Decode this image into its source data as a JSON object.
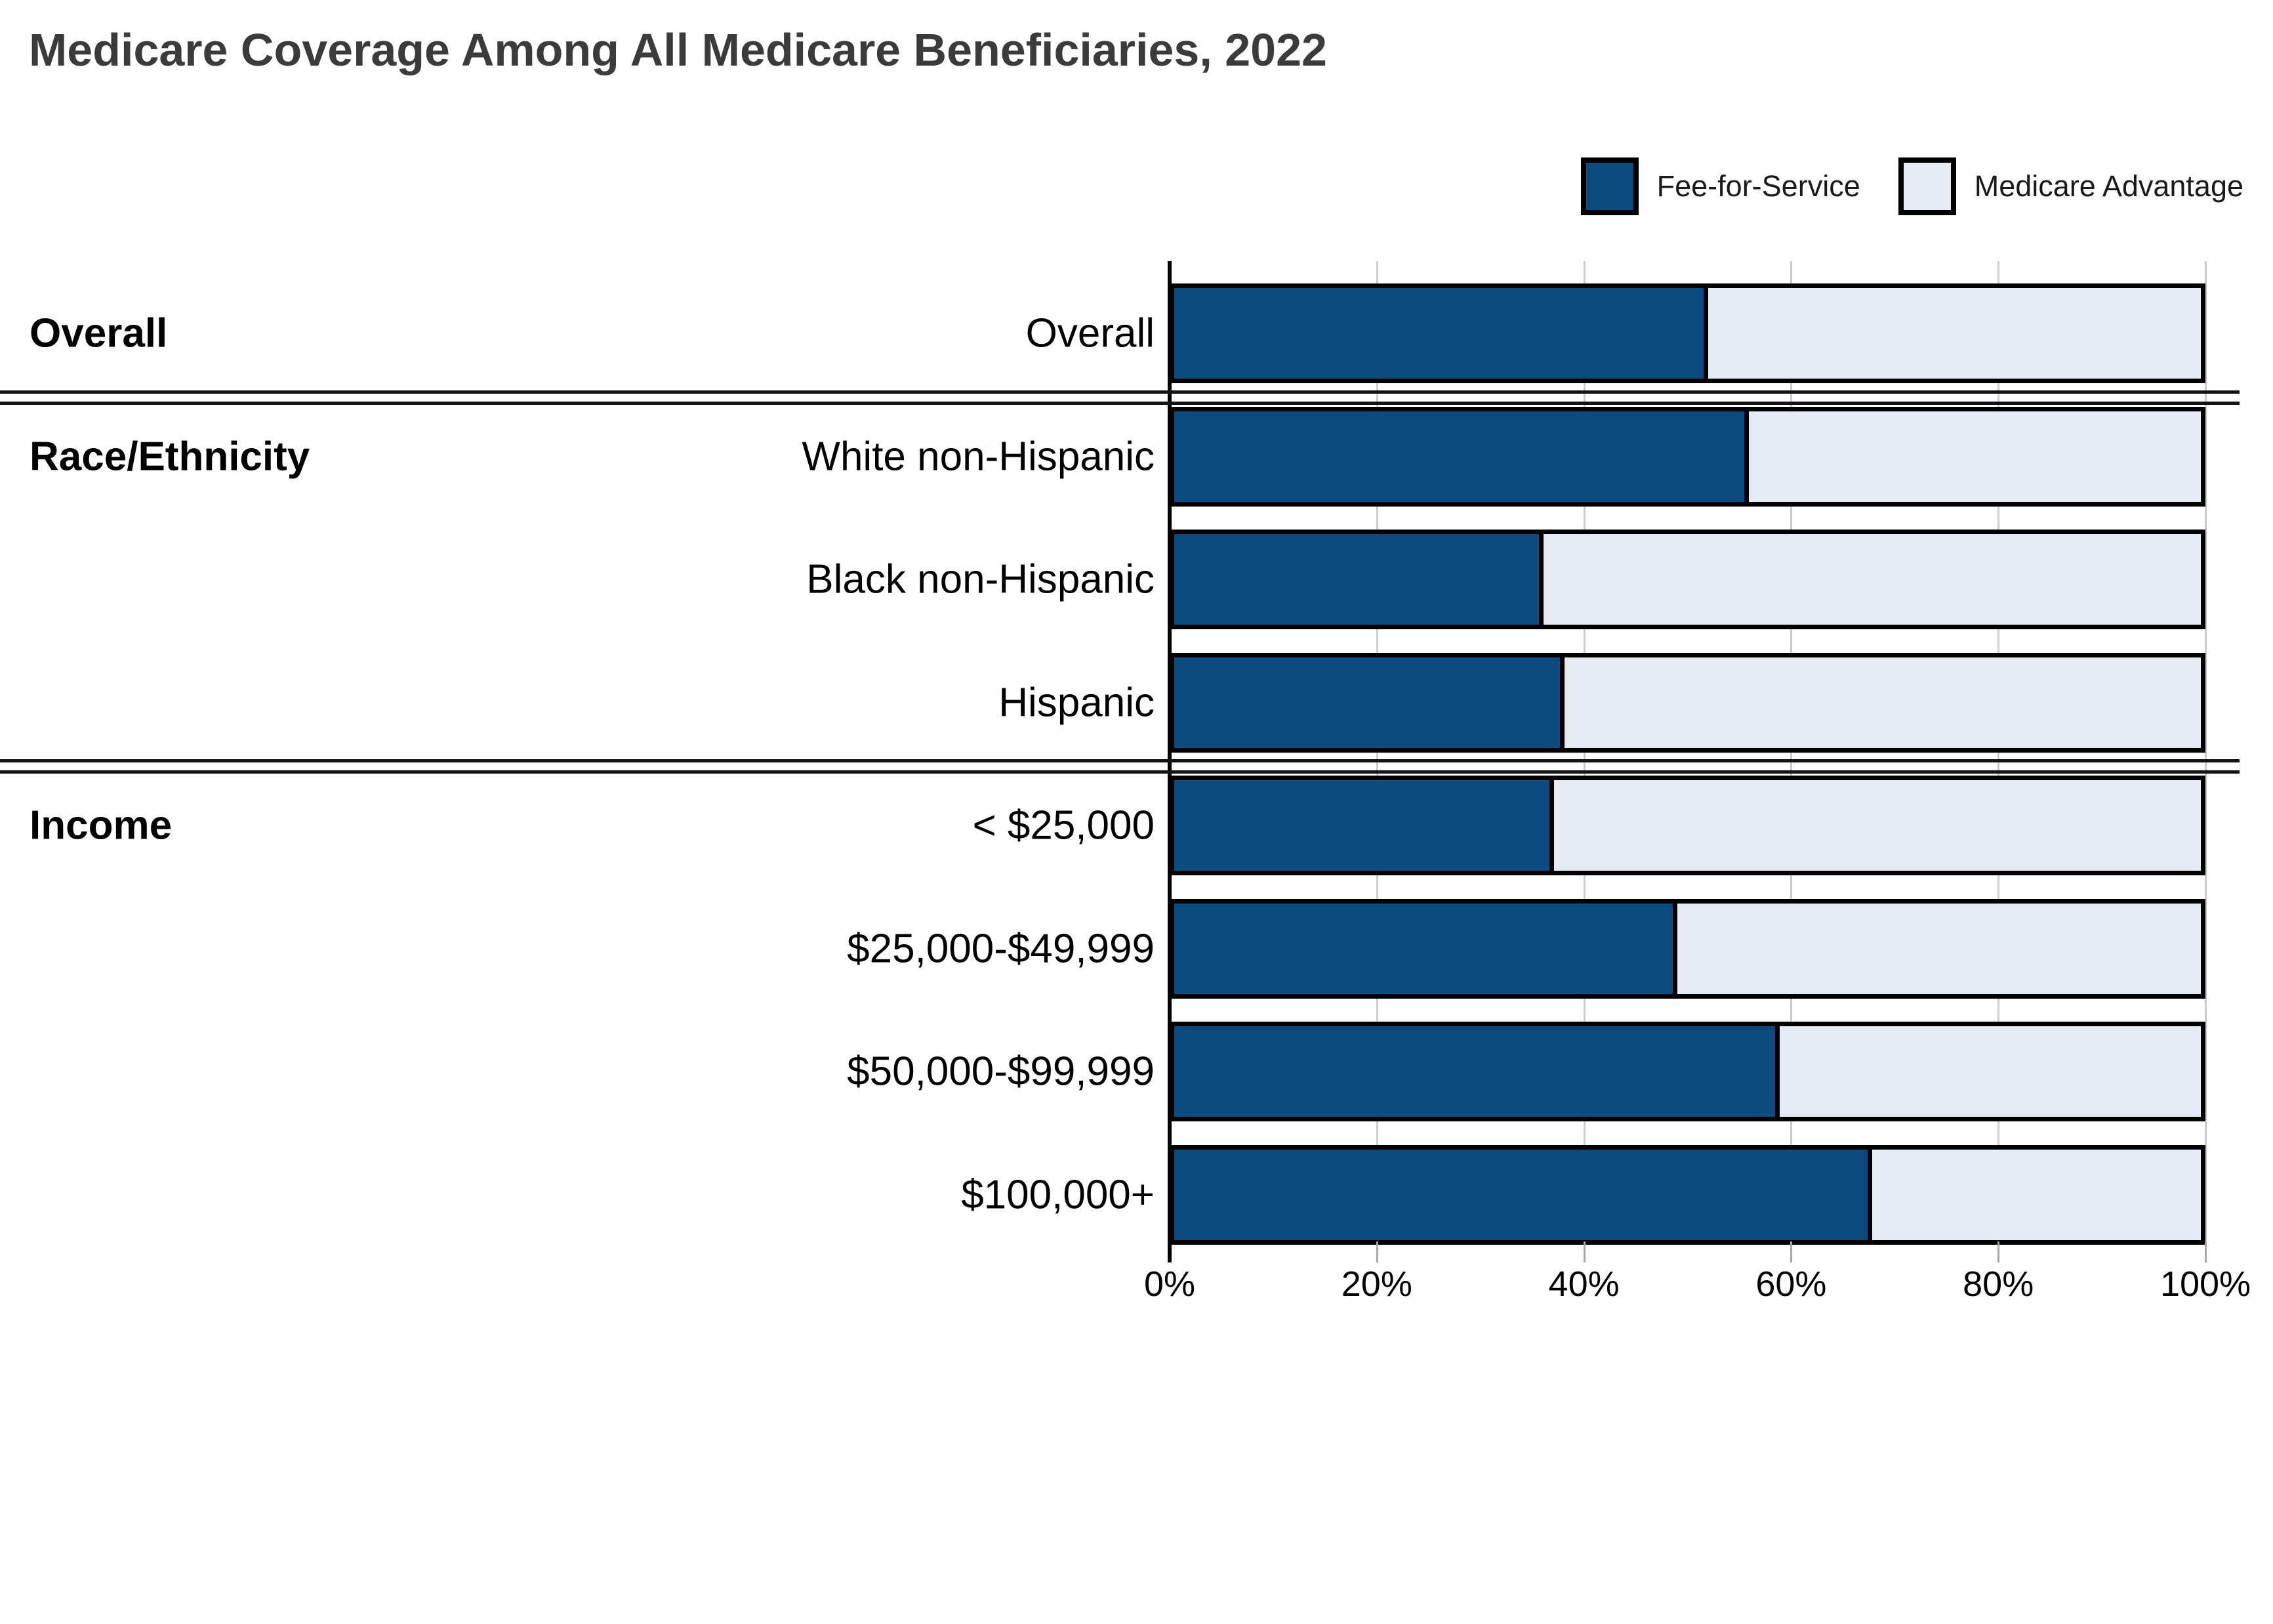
{
  "title": "Medicare Coverage Among All Medicare Beneficiaries, 2022",
  "colors": {
    "fee_for_service": "#0D4A7E",
    "medicare_advantage": "#E6EAF3",
    "bar_border": "#000000",
    "title_text": "#3B3B3B",
    "gridline": "#CCCCCC"
  },
  "legend": {
    "items": [
      {
        "label": "Fee-for-Service",
        "color": "#0D4A7E"
      },
      {
        "label": "Medicare Advantage",
        "color": "#E6EAF3"
      }
    ]
  },
  "chart_data": {
    "type": "bar",
    "orientation": "horizontal",
    "stacked": true,
    "title": "Medicare Coverage Among All Medicare Beneficiaries, 2022",
    "categories": [
      "Overall",
      "White non-Hispanic",
      "Black non-Hispanic",
      "Hispanic",
      "< $25,000",
      "$25,000-$49,999",
      "$50,000-$99,999",
      "$100,000+"
    ],
    "series": [
      {
        "name": "Fee-for-Service",
        "color": "#0D4A7E",
        "values": [
          52,
          56,
          36,
          38,
          37,
          49,
          59,
          68
        ]
      },
      {
        "name": "Medicare Advantage",
        "color": "#E6EAF3",
        "values": [
          48,
          44,
          64,
          62,
          63,
          51,
          41,
          32
        ]
      }
    ],
    "sections": [
      {
        "label": "Overall",
        "rows": [
          "Overall"
        ]
      },
      {
        "label": "Race/Ethnicity",
        "rows": [
          "White non-Hispanic",
          "Black non-Hispanic",
          "Hispanic"
        ]
      },
      {
        "label": "Income",
        "rows": [
          "< $25,000",
          "$25,000-$49,999",
          "$50,000-$99,999",
          "$100,000+"
        ]
      }
    ],
    "x_axis": {
      "range": [
        0,
        100
      ],
      "ticks": [
        0,
        20,
        40,
        60,
        80,
        100
      ],
      "tick_labels": [
        "0%",
        "20%",
        "40%",
        "60%",
        "80%",
        "100%"
      ],
      "grid": true
    },
    "legend_position": "top-right"
  }
}
